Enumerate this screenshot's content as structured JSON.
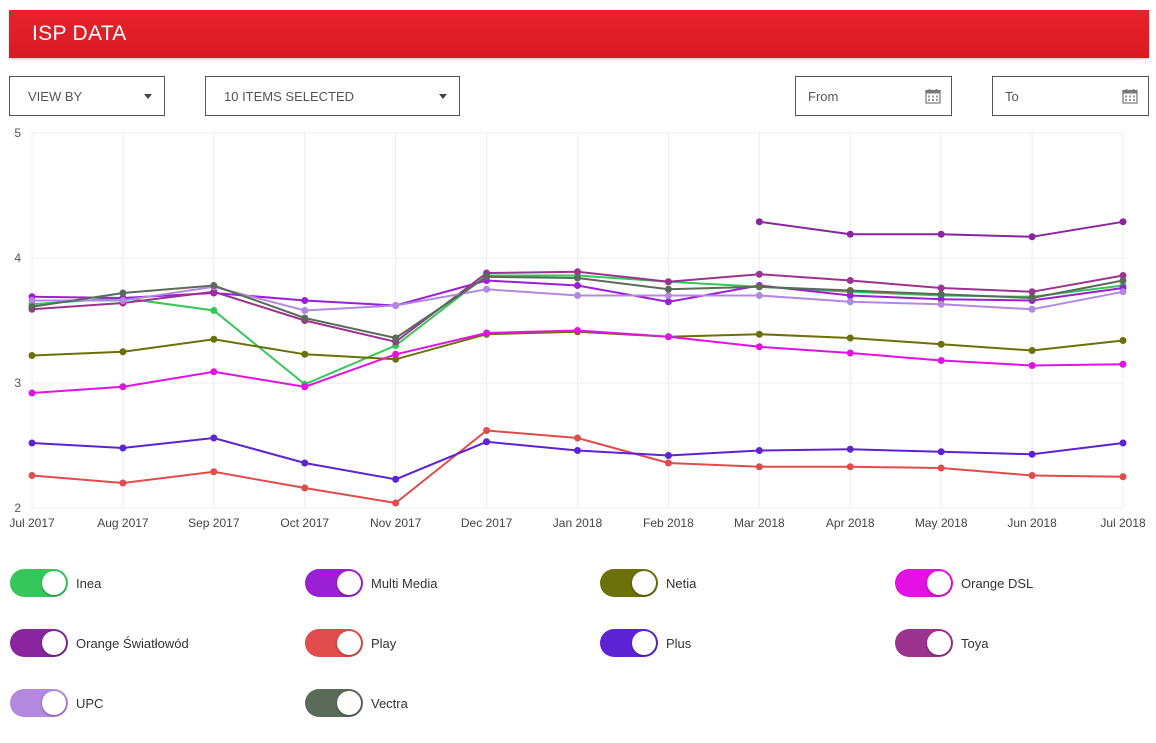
{
  "header": {
    "title": "ISP DATA"
  },
  "controls": {
    "view_by": "VIEW BY",
    "items_selected": "10 ITEMS SELECTED",
    "from_placeholder": "From",
    "to_placeholder": "To"
  },
  "chart_data": {
    "type": "line",
    "title": "",
    "xlabel": "",
    "ylabel": "",
    "ylim": [
      2,
      5
    ],
    "yticks": [
      "5",
      "4",
      "3",
      "2"
    ],
    "grid": true,
    "categories": [
      "Jul 2017",
      "Aug 2017",
      "Sep 2017",
      "Oct 2017",
      "Nov 2017",
      "Dec 2017",
      "Jan 2018",
      "Feb 2018",
      "Mar 2018",
      "Apr 2018",
      "May 2018",
      "Jun 2018",
      "Jul 2018"
    ],
    "series": [
      {
        "name": "Inea",
        "color": "#35c75a",
        "values": [
          3.63,
          3.68,
          3.58,
          2.99,
          3.3,
          3.86,
          3.86,
          3.81,
          3.77,
          3.73,
          3.7,
          3.69,
          3.78
        ]
      },
      {
        "name": "Multi Media",
        "color": "#9b1fd6",
        "values": [
          3.69,
          3.68,
          3.72,
          3.66,
          3.62,
          3.82,
          3.78,
          3.65,
          3.78,
          3.7,
          3.67,
          3.66,
          3.76
        ]
      },
      {
        "name": "Netia",
        "color": "#6b7008",
        "values": [
          3.22,
          3.25,
          3.35,
          3.23,
          3.19,
          3.39,
          3.41,
          3.37,
          3.39,
          3.36,
          3.31,
          3.26,
          3.34
        ]
      },
      {
        "name": "Orange DSL",
        "color": "#e311e3",
        "values": [
          2.92,
          2.97,
          3.09,
          2.97,
          3.23,
          3.4,
          3.42,
          3.37,
          3.29,
          3.24,
          3.18,
          3.14,
          3.15
        ]
      },
      {
        "name": "Orange Światłowód",
        "color": "#88259f",
        "values": [
          null,
          null,
          null,
          null,
          null,
          null,
          null,
          null,
          4.29,
          4.19,
          4.19,
          4.17,
          4.29
        ]
      },
      {
        "name": "Play",
        "color": "#e04b4b",
        "values": [
          2.26,
          2.2,
          2.29,
          2.16,
          2.04,
          2.62,
          2.56,
          2.36,
          2.33,
          2.33,
          2.32,
          2.26,
          2.25
        ]
      },
      {
        "name": "Plus",
        "color": "#5b23d4",
        "values": [
          2.52,
          2.48,
          2.56,
          2.36,
          2.23,
          2.53,
          2.46,
          2.42,
          2.46,
          2.47,
          2.45,
          2.43,
          2.52
        ]
      },
      {
        "name": "Toya",
        "color": "#9c3390",
        "values": [
          3.59,
          3.64,
          3.73,
          3.5,
          3.33,
          3.88,
          3.89,
          3.81,
          3.87,
          3.82,
          3.76,
          3.73,
          3.86
        ]
      },
      {
        "name": "UPC",
        "color": "#b389e0",
        "values": [
          3.66,
          3.66,
          3.77,
          3.58,
          3.62,
          3.75,
          3.7,
          3.7,
          3.7,
          3.65,
          3.63,
          3.59,
          3.73
        ]
      },
      {
        "name": "Vectra",
        "color": "#5a6b5a",
        "values": [
          3.61,
          3.72,
          3.78,
          3.52,
          3.36,
          3.85,
          3.84,
          3.75,
          3.77,
          3.74,
          3.71,
          3.68,
          3.82
        ]
      }
    ]
  },
  "legend": [
    {
      "label": "Inea",
      "color": "#35c75a"
    },
    {
      "label": "Multi Media",
      "color": "#9b1fd6"
    },
    {
      "label": "Netia",
      "color": "#6b7008"
    },
    {
      "label": "Orange DSL",
      "color": "#e311e3"
    },
    {
      "label": "Orange Światłowód",
      "color": "#88259f"
    },
    {
      "label": "Play",
      "color": "#e04b4b"
    },
    {
      "label": "Plus",
      "color": "#5b23d4"
    },
    {
      "label": "Toya",
      "color": "#9c3390"
    },
    {
      "label": "UPC",
      "color": "#b389e0"
    },
    {
      "label": "Vectra",
      "color": "#5a6b5a"
    }
  ]
}
